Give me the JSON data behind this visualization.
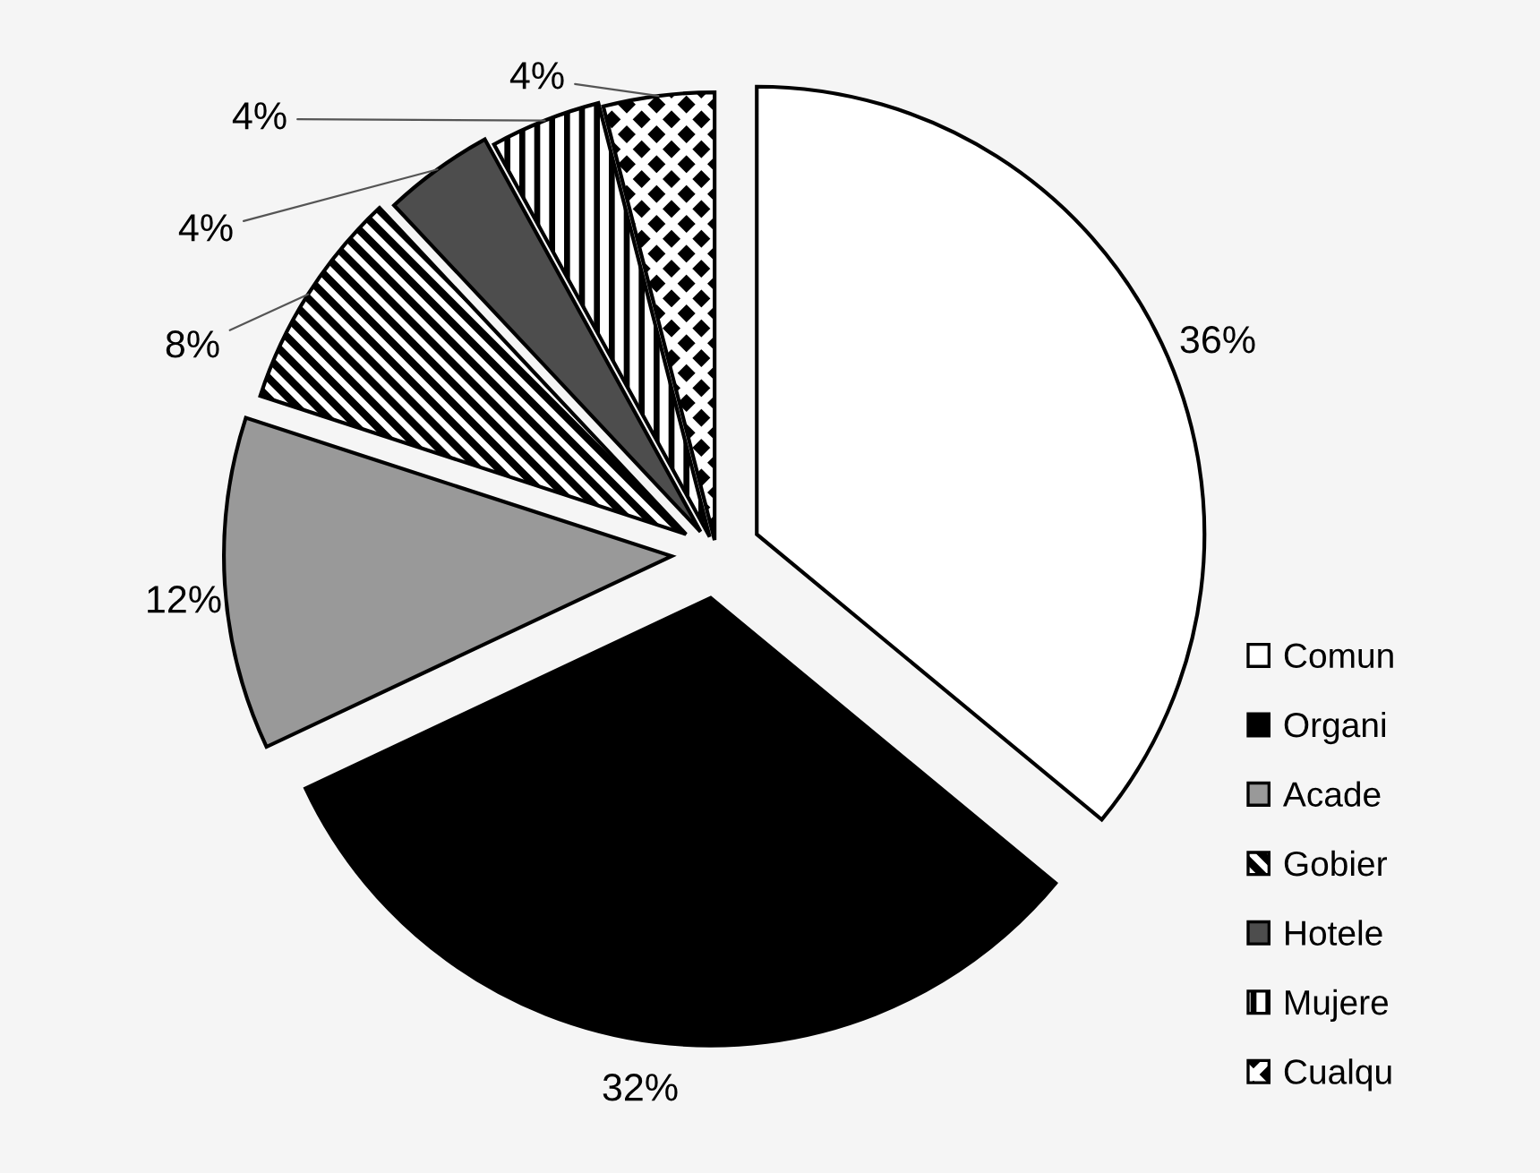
{
  "chart_data": {
    "type": "pie",
    "categories": [
      "Comun",
      "Organi",
      "Acade",
      "Gobier",
      "Hotele",
      "Mujere",
      "Cualqu"
    ],
    "values": [
      36,
      32,
      12,
      8,
      4,
      4,
      4
    ],
    "colors": [
      "#ffffff",
      "#000000",
      "#999999",
      "#000000",
      "#4d4d4d",
      "#000000",
      "#000000"
    ],
    "value_labels": [
      "36%",
      "32%",
      "12%",
      "8%",
      "4%",
      "4%",
      "4%"
    ],
    "legend": "right"
  }
}
